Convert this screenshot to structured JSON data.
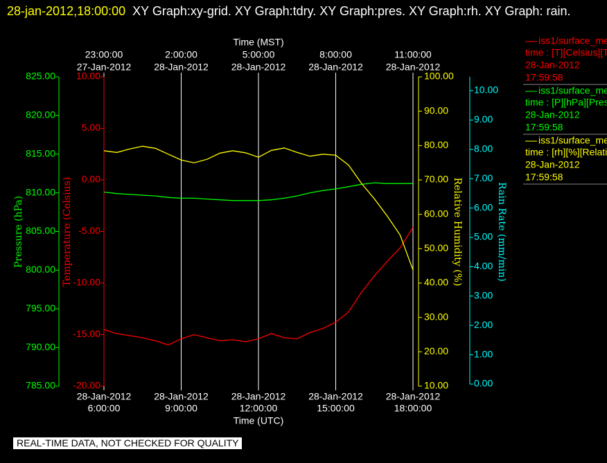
{
  "chart_data": {
    "type": "line",
    "title_time": "28-jan-2012,18:00:00",
    "title": "XY Graph:xy-grid.  XY Graph:tdry.  XY Graph:pres.  XY Graph:rh.  XY Graph: rain.",
    "x2label": "Time (MST)",
    "xlabel": "Time (UTC)",
    "xlim": [
      "2012-01-28 06:00",
      "2012-01-28 18:00"
    ],
    "xticks": [
      {
        "value": "2012-01-28 06:00",
        "label": [
          "28-Jan-2012",
          "6:00:00"
        ]
      },
      {
        "value": "2012-01-28 09:00",
        "label": [
          "28-Jan-2012",
          "9:00:00"
        ]
      },
      {
        "value": "2012-01-28 12:00",
        "label": [
          "28-Jan-2012",
          "12:00:00"
        ]
      },
      {
        "value": "2012-01-28 15:00",
        "label": [
          "28-Jan-2012",
          "15:00:00"
        ]
      },
      {
        "value": "2012-01-28 18:00",
        "label": [
          "28-Jan-2012",
          "18:00:00"
        ]
      }
    ],
    "x2ticks": [
      {
        "value": "2012-01-28 06:00",
        "label": [
          "23:00:00",
          "27-Jan-2012"
        ]
      },
      {
        "value": "2012-01-28 09:00",
        "label": [
          "2:00:00",
          "28-Jan-2012"
        ]
      },
      {
        "value": "2012-01-28 12:00",
        "label": [
          "5:00:00",
          "28-Jan-2012"
        ]
      },
      {
        "value": "2012-01-28 15:00",
        "label": [
          "8:00:00",
          "28-Jan-2012"
        ]
      },
      {
        "value": "2012-01-28 18:00",
        "label": [
          "11:00:00",
          "28-Jan-2012"
        ]
      }
    ],
    "grid": true,
    "ylabel": "Temperature (Celsius)",
    "ylim": [
      -20,
      10
    ],
    "yticks": [
      {
        "value": 10,
        "label": "10.00"
      },
      {
        "value": 5,
        "label": "5.00"
      },
      {
        "value": 0,
        "label": "0.00"
      },
      {
        "value": -5,
        "label": "-5.00"
      },
      {
        "value": -10,
        "label": "-10.00"
      },
      {
        "value": -15,
        "label": "-15.00"
      },
      {
        "value": -20,
        "label": "-20.00"
      }
    ],
    "y2label": "Pressure (hPa)",
    "y2lim": [
      785,
      825
    ],
    "y2ticks": [
      {
        "value": 825,
        "label": "825.00"
      },
      {
        "value": 820,
        "label": "820.00"
      },
      {
        "value": 815,
        "label": "815.00"
      },
      {
        "value": 810,
        "label": "810.00"
      },
      {
        "value": 805,
        "label": "805.00"
      },
      {
        "value": 800,
        "label": "800.00"
      },
      {
        "value": 795,
        "label": "795.00"
      },
      {
        "value": 790,
        "label": "790.00"
      },
      {
        "value": 785,
        "label": "785.00"
      }
    ],
    "y3label": "Relative Humidity (%)",
    "y3lim": [
      10,
      100
    ],
    "y3ticks": [
      {
        "value": 100,
        "label": "100.00"
      },
      {
        "value": 90,
        "label": "90.00"
      },
      {
        "value": 80,
        "label": "80.00"
      },
      {
        "value": 70,
        "label": "70.00"
      },
      {
        "value": 60,
        "label": "60.00"
      },
      {
        "value": 50,
        "label": "50.00"
      },
      {
        "value": 40,
        "label": "40.00"
      },
      {
        "value": 30,
        "label": "30.00"
      },
      {
        "value": 20,
        "label": "20.00"
      },
      {
        "value": 10,
        "label": "10.00"
      }
    ],
    "y4label": "Rain Rate (mm/min)",
    "y4lim": [
      0,
      10
    ],
    "y4ticks": [
      {
        "value": 10,
        "label": "10.00"
      },
      {
        "value": 9,
        "label": "9.00"
      },
      {
        "value": 8,
        "label": "8.00"
      },
      {
        "value": 7,
        "label": "7.00"
      },
      {
        "value": 6,
        "label": "6.00"
      },
      {
        "value": 5,
        "label": "5.00"
      },
      {
        "value": 4,
        "label": "4.00"
      },
      {
        "value": 3,
        "label": "3.00"
      },
      {
        "value": 2,
        "label": "2.00"
      },
      {
        "value": 1,
        "label": "1.00"
      },
      {
        "value": 0,
        "label": "0.00"
      }
    ],
    "axis_colors": {
      "y": "#ff0000",
      "y2": "#00ff00",
      "y3": "#ffff00",
      "y4": "#00ffff"
    },
    "x": [
      "2012-01-28 06:00",
      "2012-01-28 06:30",
      "2012-01-28 07:00",
      "2012-01-28 07:30",
      "2012-01-28 08:00",
      "2012-01-28 08:30",
      "2012-01-28 09:00",
      "2012-01-28 09:30",
      "2012-01-28 10:00",
      "2012-01-28 10:30",
      "2012-01-28 11:00",
      "2012-01-28 11:30",
      "2012-01-28 12:00",
      "2012-01-28 12:30",
      "2012-01-28 13:00",
      "2012-01-28 13:30",
      "2012-01-28 14:00",
      "2012-01-28 14:30",
      "2012-01-28 15:00",
      "2012-01-28 15:30",
      "2012-01-28 16:00",
      "2012-01-28 16:30",
      "2012-01-28 17:00",
      "2012-01-28 17:30",
      "2012-01-28 18:00"
    ],
    "series": [
      {
        "name": "iss1/surface_me",
        "color": "#ff0000",
        "axis": "y",
        "legend_details": [
          "time : [T][Celsius][T",
          "28-Jan-2012",
          "17:59:58"
        ],
        "values": [
          -14.5,
          -14.9,
          -15.1,
          -15.3,
          -15.6,
          -16.0,
          -15.4,
          -15.0,
          -15.3,
          -15.6,
          -15.5,
          -15.7,
          -15.4,
          -14.9,
          -15.3,
          -15.4,
          -14.8,
          -14.4,
          -13.8,
          -12.8,
          -10.9,
          -9.3,
          -7.9,
          -6.6,
          -4.6
        ]
      },
      {
        "name": "iss1/surface_me",
        "color": "#00ff00",
        "axis": "y2",
        "legend_details": [
          "time : [P][hPa][Pres",
          "28-Jan-2012",
          "17:59:58"
        ],
        "values": [
          810.1,
          809.9,
          809.8,
          809.7,
          809.6,
          809.4,
          809.3,
          809.3,
          809.2,
          809.1,
          809.0,
          809.0,
          809.0,
          809.1,
          809.3,
          809.6,
          810.0,
          810.3,
          810.5,
          810.8,
          811.1,
          811.3,
          811.2,
          811.2,
          811.2
        ]
      },
      {
        "name": "iss1/surface_me",
        "color": "#ffff00",
        "axis": "y3",
        "legend_details": [
          "time : [rh][%][Relati",
          "28-Jan-2012",
          "17:59:58"
        ],
        "values": [
          78.5,
          78.0,
          79.0,
          79.8,
          79.2,
          77.5,
          75.8,
          75.0,
          76.0,
          77.8,
          78.5,
          77.9,
          76.6,
          78.6,
          79.3,
          78.0,
          76.9,
          77.5,
          77.2,
          74.3,
          69.0,
          64.5,
          59.5,
          54.0,
          43.8
        ]
      }
    ],
    "footer": "REAL-TIME DATA, NOT CHECKED FOR QUALITY"
  }
}
